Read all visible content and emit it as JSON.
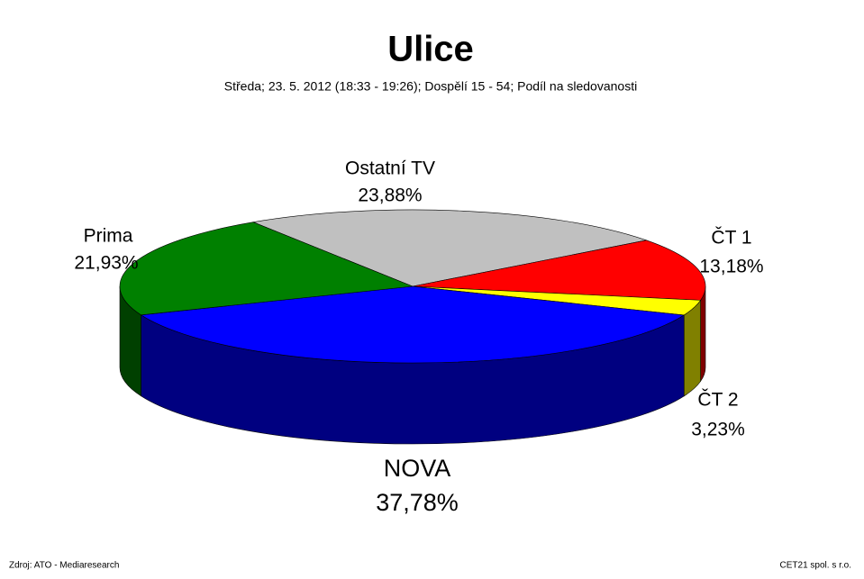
{
  "chart_data": {
    "type": "pie3d",
    "title": "Ulice",
    "subtitle": "Středa; 23. 5. 2012 (18:33 - 19:26); Dospělí 15 - 54; Podíl na sledovanosti",
    "categories": [
      "Ostatní TV",
      "ČT 1",
      "ČT 2",
      "NOVA",
      "Prima"
    ],
    "values": [
      23.88,
      13.18,
      3.23,
      37.78,
      21.93
    ],
    "value_labels": [
      "23,88%",
      "13,18%",
      "3,23%",
      "37,78%",
      "21,93%"
    ],
    "colors": [
      "#c0c0c0",
      "#ff0000",
      "#ffff00",
      "#0000ff",
      "#008000"
    ],
    "side_colors": [
      "#606060",
      "#800000",
      "#808000",
      "#000080",
      "#004000"
    ],
    "source": "Zdroj: ATO - Mediaresearch",
    "footer_right": "CET21 spol. s r.o."
  }
}
